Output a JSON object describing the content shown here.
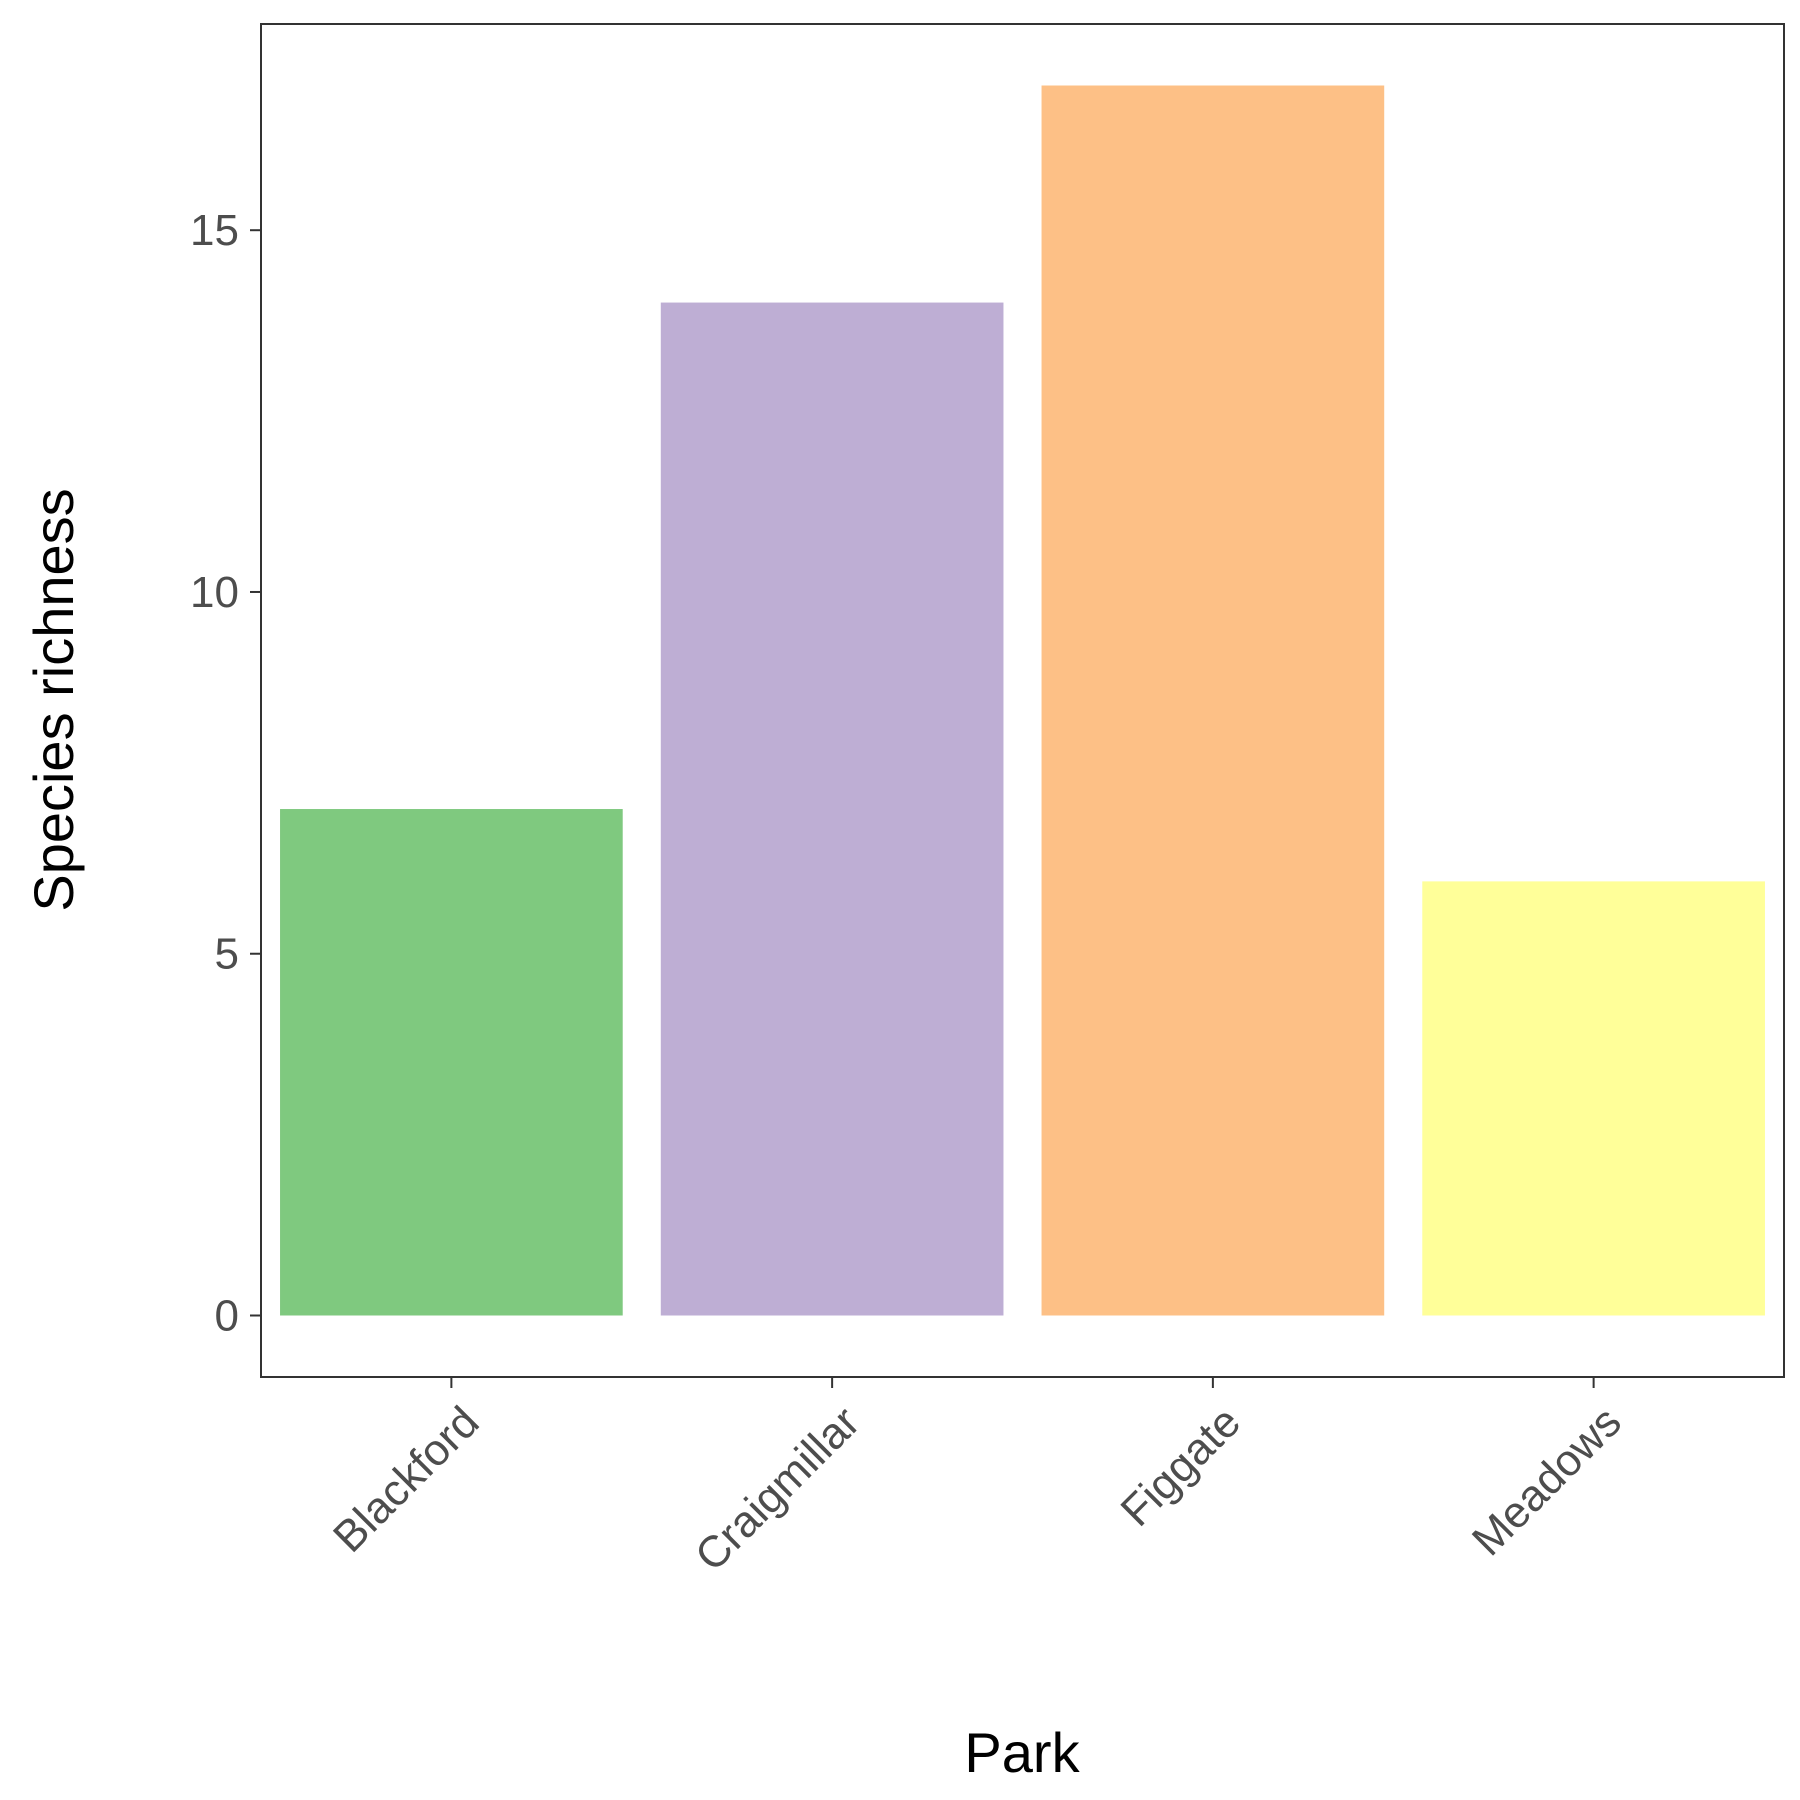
{
  "chart_data": {
    "type": "bar",
    "title": "",
    "xlabel": "Park",
    "ylabel": "Species richness",
    "categories": [
      "Blackford",
      "Craigmillar",
      "Figgate",
      "Meadows"
    ],
    "values": [
      7,
      14,
      17,
      6
    ],
    "colors": [
      "#7fc97f",
      "#beaed4",
      "#fdc086",
      "#ffff99"
    ],
    "ylim": [
      -0.85,
      17.85
    ],
    "yticks": [
      0,
      5,
      10,
      15
    ],
    "grid": false,
    "legend": "none"
  }
}
